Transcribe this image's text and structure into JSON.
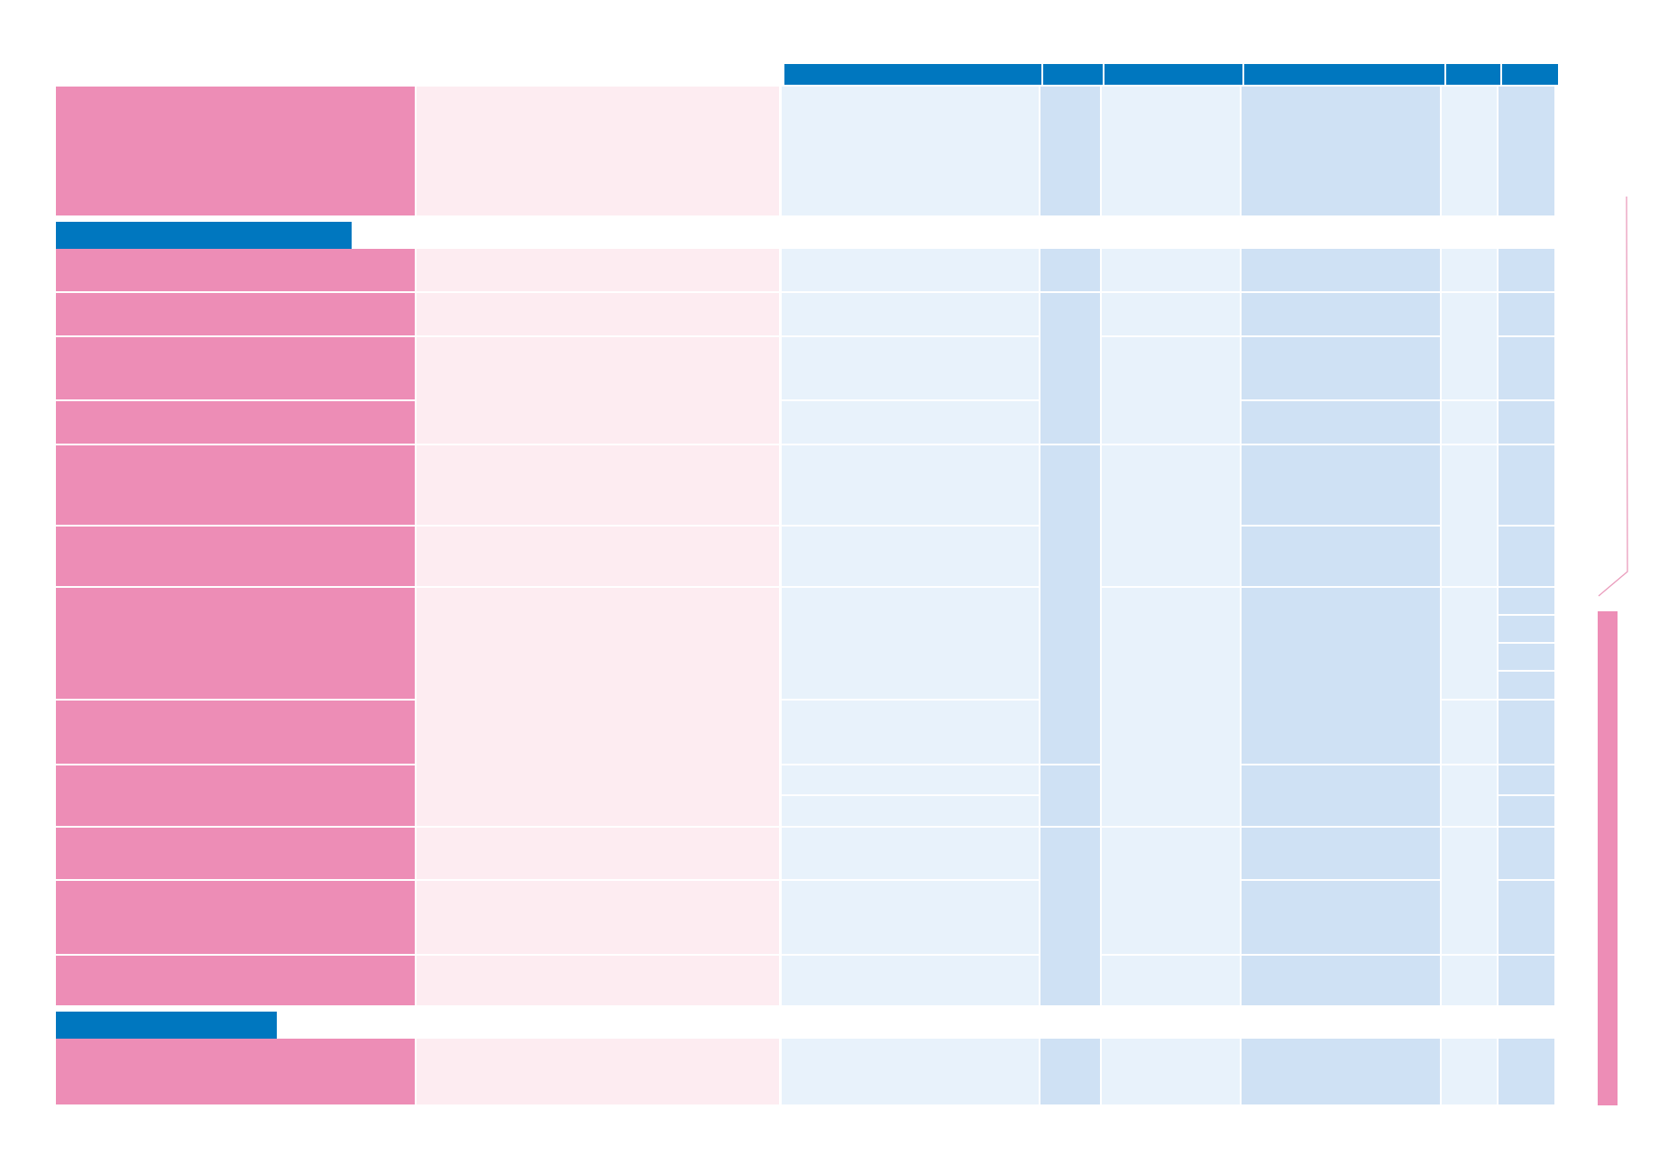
{
  "document": {
    "type": "table-layout",
    "text": [],
    "colors": {
      "header_blue": "#0077bf",
      "row_label_pink": "#ed8db6",
      "description_light_pink": "#fdecf1",
      "cell_light_blue": "#e8f2fb",
      "cell_medium_blue": "#cfe1f4",
      "side_bar_pink": "#ed8db6",
      "bracket_line_pink": "#ea9cbc"
    }
  }
}
